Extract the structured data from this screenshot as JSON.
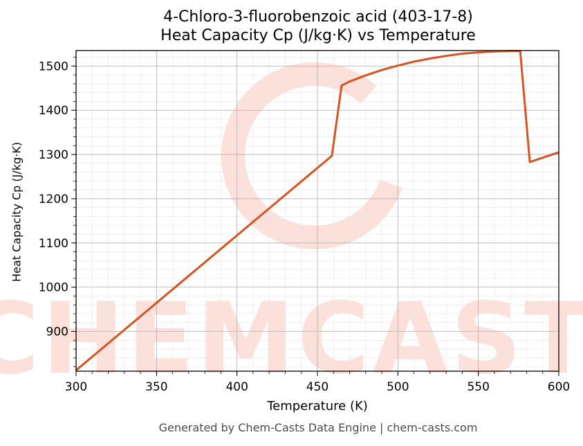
{
  "chart_data": {
    "type": "line",
    "title": "4-Chloro-3-fluorobenzoic acid (403-17-8)",
    "subtitle": "Heat Capacity Cp (J/kg·K) vs Temperature",
    "xlabel": "Temperature (K)",
    "ylabel": "Heat Capacity Cp (J/kg·K)",
    "xlim": [
      300,
      600
    ],
    "ylim": [
      810,
      1535
    ],
    "xticks": [
      300,
      350,
      400,
      450,
      500,
      550,
      600
    ],
    "yticks": [
      900,
      1000,
      1100,
      1200,
      1300,
      1400,
      1500
    ],
    "grid": true,
    "legend": "none",
    "series": [
      {
        "color": "#d6531f",
        "x": [
          300,
          459,
          465,
          470,
          480,
          490,
          500,
          510,
          520,
          530,
          540,
          550,
          560,
          570,
          576,
          582,
          600
        ],
        "y": [
          812,
          1297,
          1456,
          1465,
          1479,
          1491,
          1501,
          1510,
          1517,
          1523,
          1528,
          1531,
          1533,
          1534,
          1534,
          1283,
          1305
        ]
      }
    ]
  },
  "watermark": {
    "text": "CHEMCASTS",
    "color": "#fde0da"
  },
  "footer": "Generated by Chem-Casts Data Engine | chem-casts.com"
}
